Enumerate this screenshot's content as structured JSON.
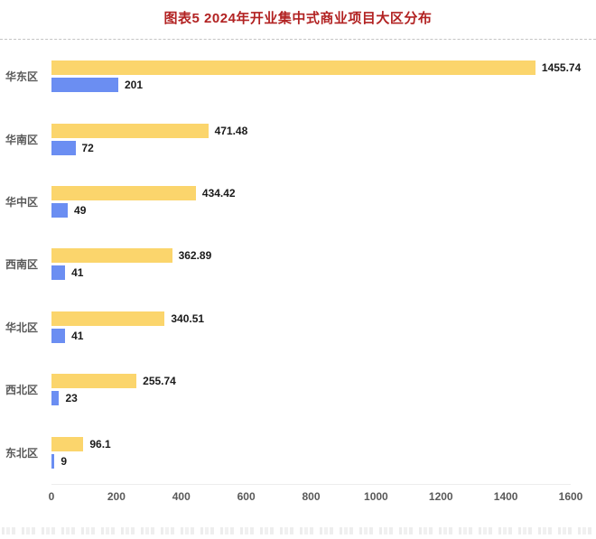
{
  "title": "图表5 2024年开业集中式商业项目大区分布",
  "colors": {
    "title": "#b22222",
    "yellow_bar": "#fbd56c",
    "blue_bar": "#6b8ef2"
  },
  "chart_data": {
    "type": "bar",
    "orientation": "horizontal",
    "title": "图表5 2024年开业集中式商业项目大区分布",
    "categories": [
      "华东区",
      "华南区",
      "华中区",
      "西南区",
      "华北区",
      "西北区",
      "东北区"
    ],
    "series": [
      {
        "name": "yellow-series",
        "color": "#fbd56c",
        "values": [
          1455.74,
          471.48,
          434.42,
          362.89,
          340.51,
          255.74,
          96.1
        ]
      },
      {
        "name": "blue-series",
        "color": "#6b8ef2",
        "values": [
          201,
          72,
          49,
          41,
          41,
          23,
          9
        ]
      }
    ],
    "xlim": [
      0,
      1600
    ],
    "xticks": [
      0,
      200,
      400,
      600,
      800,
      1000,
      1200,
      1400,
      1600
    ],
    "grid": false,
    "legend": "none"
  }
}
